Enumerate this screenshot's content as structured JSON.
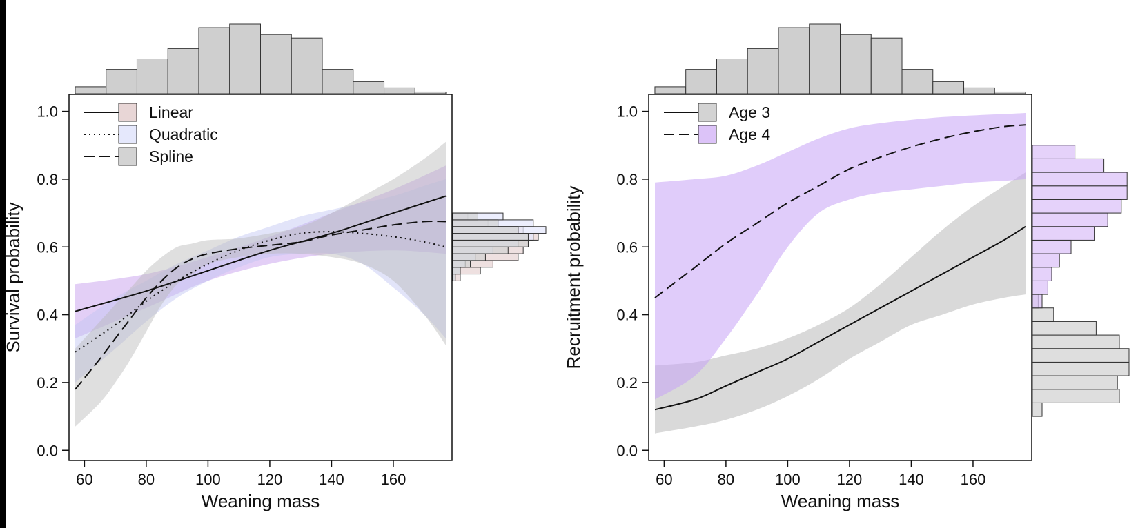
{
  "chart_data": [
    {
      "type": "line",
      "id": "survival",
      "xlabel": "Weaning mass",
      "ylabel": "Survival probability",
      "xlim": [
        55,
        179
      ],
      "ylim": [
        -0.03,
        1.05
      ],
      "xticks": [
        60,
        80,
        100,
        120,
        140,
        160
      ],
      "yticks": [
        0.0,
        0.2,
        0.4,
        0.6,
        0.8,
        1.0
      ],
      "ytick_labels": [
        "0.0",
        "0.2",
        "0.4",
        "0.6",
        "0.8",
        "1.0"
      ],
      "legend": {
        "position": "top-left",
        "entries": [
          {
            "label": "Linear",
            "dash": "solid",
            "fill": "#e8d6d6"
          },
          {
            "label": "Quadratic",
            "dash": "dotted",
            "fill": "#e5e8fc"
          },
          {
            "label": "Spline",
            "dash": "dashed",
            "fill": "#d3d3d3"
          }
        ]
      },
      "series": [
        {
          "name": "Linear",
          "dash": "solid",
          "band_color": "#c79fee",
          "band_opacity": 0.5,
          "x": [
            57,
            80,
            100,
            120,
            140,
            160,
            177
          ],
          "y": [
            0.41,
            0.47,
            0.53,
            0.59,
            0.64,
            0.7,
            0.75
          ],
          "lower": [
            0.33,
            0.42,
            0.5,
            0.55,
            0.58,
            0.59,
            0.58
          ],
          "upper": [
            0.49,
            0.52,
            0.57,
            0.63,
            0.7,
            0.77,
            0.84
          ]
        },
        {
          "name": "Quadratic",
          "dash": "dotted",
          "band_color": "#bfc3f2",
          "band_opacity": 0.45,
          "x": [
            57,
            70,
            80,
            90,
            100,
            110,
            120,
            130,
            140,
            150,
            160,
            170,
            177
          ],
          "y": [
            0.29,
            0.37,
            0.44,
            0.5,
            0.55,
            0.59,
            0.62,
            0.64,
            0.645,
            0.64,
            0.63,
            0.615,
            0.6
          ],
          "lower": [
            0.2,
            0.3,
            0.38,
            0.45,
            0.5,
            0.54,
            0.57,
            0.58,
            0.58,
            0.55,
            0.48,
            0.4,
            0.33
          ],
          "upper": [
            0.37,
            0.45,
            0.5,
            0.55,
            0.59,
            0.63,
            0.66,
            0.69,
            0.71,
            0.73,
            0.75,
            0.78,
            0.8
          ]
        },
        {
          "name": "Spline",
          "dash": "dashed",
          "band_color": "#b9b9b9",
          "band_opacity": 0.45,
          "x": [
            57,
            65,
            70,
            75,
            80,
            85,
            90,
            95,
            100,
            110,
            120,
            130,
            140,
            150,
            160,
            170,
            177
          ],
          "y": [
            0.18,
            0.27,
            0.33,
            0.39,
            0.45,
            0.5,
            0.54,
            0.565,
            0.58,
            0.595,
            0.605,
            0.615,
            0.635,
            0.65,
            0.665,
            0.675,
            0.675
          ],
          "lower": [
            0.07,
            0.14,
            0.2,
            0.27,
            0.35,
            0.43,
            0.49,
            0.52,
            0.55,
            0.57,
            0.58,
            0.58,
            0.57,
            0.55,
            0.5,
            0.4,
            0.31
          ],
          "upper": [
            0.3,
            0.38,
            0.43,
            0.48,
            0.53,
            0.57,
            0.6,
            0.61,
            0.62,
            0.625,
            0.64,
            0.66,
            0.7,
            0.75,
            0.8,
            0.86,
            0.91
          ]
        }
      ],
      "top_histogram": {
        "bins": [
          57,
          67,
          77,
          87,
          97,
          107,
          117,
          127,
          137,
          147,
          157,
          167,
          177
        ],
        "counts": [
          2,
          7,
          10,
          13,
          19,
          20,
          17,
          16,
          7,
          3.5,
          1.7,
          0.5
        ]
      },
      "side_histogram": {
        "bins": [
          0.5,
          0.52,
          0.54,
          0.56,
          0.58,
          0.6,
          0.62,
          0.64,
          0.66,
          0.68,
          0.7
        ],
        "series": [
          {
            "name": "Linear",
            "fill": "#e8d6d6",
            "counts": [
              3,
              11,
              16,
              26,
              28,
              30,
              34,
              28,
              14,
              6
            ]
          },
          {
            "name": "Quadratic",
            "fill": "#e5e8fc",
            "counts": [
              1,
              3,
              5,
              9,
              16,
              26,
              32,
              37,
              32,
              20
            ]
          },
          {
            "name": "Spline",
            "fill": "#d3d3d3",
            "counts": [
              1,
              3,
              7,
              13,
              22,
              30,
              30,
              26,
              18,
              10
            ]
          }
        ]
      }
    },
    {
      "type": "line",
      "id": "recruitment",
      "xlabel": "Weaning mass",
      "ylabel": "Recruitment probability",
      "xlim": [
        55,
        179
      ],
      "ylim": [
        -0.03,
        1.05
      ],
      "xticks": [
        60,
        80,
        100,
        120,
        140,
        160
      ],
      "yticks": [
        0.0,
        0.2,
        0.4,
        0.6,
        0.8,
        1.0
      ],
      "ytick_labels": [
        "0.0",
        "0.2",
        "0.4",
        "0.6",
        "0.8",
        "1.0"
      ],
      "legend": {
        "position": "top-left",
        "entries": [
          {
            "label": "Age 3",
            "dash": "solid",
            "fill": "#d3d3d3"
          },
          {
            "label": "Age 4",
            "dash": "dashed",
            "fill": "#dcc3f8"
          }
        ]
      },
      "series": [
        {
          "name": "Age 3",
          "dash": "solid",
          "band_color": "#c9c9c9",
          "band_opacity": 0.7,
          "x": [
            57,
            70,
            80,
            90,
            100,
            110,
            120,
            130,
            140,
            150,
            160,
            170,
            177
          ],
          "y": [
            0.12,
            0.15,
            0.19,
            0.23,
            0.27,
            0.32,
            0.37,
            0.42,
            0.47,
            0.52,
            0.57,
            0.62,
            0.66
          ],
          "lower": [
            0.05,
            0.07,
            0.09,
            0.12,
            0.16,
            0.21,
            0.27,
            0.32,
            0.37,
            0.4,
            0.43,
            0.45,
            0.46
          ],
          "upper": [
            0.25,
            0.26,
            0.28,
            0.3,
            0.33,
            0.37,
            0.42,
            0.49,
            0.57,
            0.65,
            0.72,
            0.78,
            0.82
          ]
        },
        {
          "name": "Age 4",
          "dash": "dashed",
          "band_color": "#c6a3f5",
          "band_opacity": 0.55,
          "x": [
            57,
            70,
            80,
            90,
            100,
            110,
            120,
            130,
            140,
            150,
            160,
            170,
            177
          ],
          "y": [
            0.45,
            0.54,
            0.61,
            0.67,
            0.73,
            0.78,
            0.83,
            0.865,
            0.895,
            0.92,
            0.94,
            0.955,
            0.96
          ],
          "lower": [
            0.15,
            0.22,
            0.33,
            0.46,
            0.6,
            0.7,
            0.74,
            0.76,
            0.77,
            0.78,
            0.79,
            0.795,
            0.8
          ],
          "upper": [
            0.79,
            0.8,
            0.81,
            0.84,
            0.88,
            0.92,
            0.95,
            0.965,
            0.975,
            0.983,
            0.988,
            0.992,
            0.995
          ]
        }
      ],
      "top_histogram": {
        "bins": [
          57,
          67,
          77,
          87,
          97,
          107,
          117,
          127,
          137,
          147,
          157,
          167,
          177
        ],
        "counts": [
          2,
          7,
          10,
          13,
          19,
          20,
          17,
          16,
          7,
          3.5,
          1.7,
          0.5
        ]
      },
      "side_histogram": {
        "bins": [
          0.1,
          0.14,
          0.18,
          0.22,
          0.26,
          0.3,
          0.34,
          0.38,
          0.42,
          0.46,
          0.5,
          0.54,
          0.58,
          0.62,
          0.66,
          0.7,
          0.74,
          0.78,
          0.82,
          0.86,
          0.9
        ],
        "series": [
          {
            "name": "Age 3",
            "fill": "#d3d3d3",
            "counts": [
              5,
              45,
              44,
              50,
              50,
              45,
              33,
              11,
              3,
              0,
              0,
              0,
              0,
              0,
              0,
              0,
              0,
              0,
              0,
              0
            ]
          },
          {
            "name": "Age 4",
            "fill": "#dcc3f8",
            "counts": [
              0,
              0,
              0,
              0,
              0,
              0,
              0,
              0,
              5,
              8,
              10,
              14,
              20,
              32,
              39,
              46,
              49,
              49,
              37,
              22
            ]
          }
        ]
      }
    }
  ]
}
